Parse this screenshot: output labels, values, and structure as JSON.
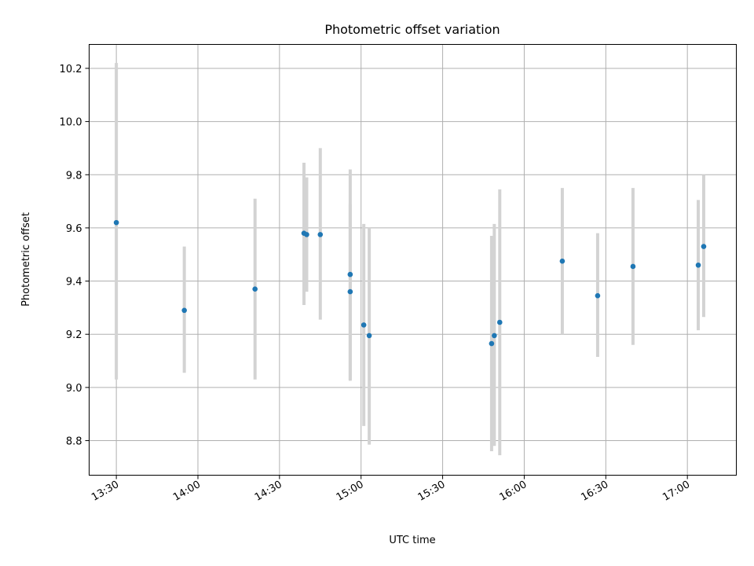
{
  "chart_data": {
    "type": "scatter",
    "title": "Photometric offset variation",
    "xlabel": "UTC time",
    "ylabel": "Photometric offset",
    "x_unit": "time",
    "xlim": [
      "13:20",
      "17:18"
    ],
    "ylim": [
      8.67,
      10.29
    ],
    "xticks": [
      "13:30",
      "14:00",
      "14:30",
      "15:00",
      "15:30",
      "16:00",
      "16:30",
      "17:00"
    ],
    "yticks": [
      8.8,
      9.0,
      9.2,
      9.4,
      9.6,
      9.8,
      10.0,
      10.2
    ],
    "grid": true,
    "legend": "none",
    "colors": {
      "point": "#1f77b4",
      "error_bar": "#d3d3d3"
    },
    "points": [
      {
        "x": "13:30",
        "y": 9.62,
        "err_low": 9.03,
        "err_high": 10.22
      },
      {
        "x": "13:55",
        "y": 9.29,
        "err_low": 9.055,
        "err_high": 9.53
      },
      {
        "x": "14:21",
        "y": 9.37,
        "err_low": 9.03,
        "err_high": 9.71
      },
      {
        "x": "14:39",
        "y": 9.58,
        "err_low": 9.31,
        "err_high": 9.845
      },
      {
        "x": "14:40",
        "y": 9.575,
        "err_low": 9.36,
        "err_high": 9.79
      },
      {
        "x": "14:45",
        "y": 9.575,
        "err_low": 9.255,
        "err_high": 9.9
      },
      {
        "x": "14:56",
        "y": 9.425,
        "err_low": 9.03,
        "err_high": 9.82
      },
      {
        "x": "14:56",
        "y": 9.36,
        "err_low": 9.025,
        "err_high": 9.69
      },
      {
        "x": "15:01",
        "y": 9.235,
        "err_low": 8.855,
        "err_high": 9.615
      },
      {
        "x": "15:03",
        "y": 9.195,
        "err_low": 8.785,
        "err_high": 9.6
      },
      {
        "x": "15:48",
        "y": 9.165,
        "err_low": 8.76,
        "err_high": 9.57
      },
      {
        "x": "15:49",
        "y": 9.195,
        "err_low": 8.78,
        "err_high": 9.615
      },
      {
        "x": "15:51",
        "y": 9.245,
        "err_low": 8.745,
        "err_high": 9.745
      },
      {
        "x": "16:14",
        "y": 9.475,
        "err_low": 9.2,
        "err_high": 9.75
      },
      {
        "x": "16:27",
        "y": 9.345,
        "err_low": 9.115,
        "err_high": 9.58
      },
      {
        "x": "16:40",
        "y": 9.455,
        "err_low": 9.16,
        "err_high": 9.75
      },
      {
        "x": "17:04",
        "y": 9.46,
        "err_low": 9.215,
        "err_high": 9.705
      },
      {
        "x": "17:06",
        "y": 9.53,
        "err_low": 9.265,
        "err_high": 9.8
      }
    ]
  }
}
